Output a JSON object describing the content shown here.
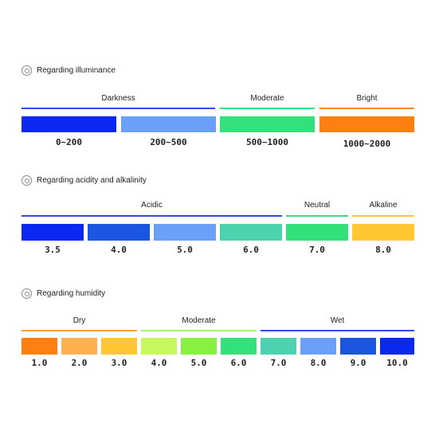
{
  "sections": [
    {
      "title": "Regarding illuminance",
      "groups": [
        {
          "label": "Darkness",
          "color": "#2f4fe0"
        },
        {
          "label": "Moderate",
          "color": "#3ddc84"
        },
        {
          "label": "Bright",
          "color": "#ff8c1a"
        }
      ],
      "swatches": [
        {
          "value": "0~200",
          "color": "#0a28f0"
        },
        {
          "value": "200~500",
          "color": "#6aa0f8"
        },
        {
          "value": "500~1000",
          "color": "#33e07a"
        },
        {
          "value": "1000~2000",
          "color": "#ff8010"
        }
      ]
    },
    {
      "title": "Regarding acidity and alkalinity",
      "groups": [
        {
          "label": "Acidic",
          "color": "#2f4fe0"
        },
        {
          "label": "Neutral",
          "color": "#3ddc84"
        },
        {
          "label": "Alkaline",
          "color": "#ffc832"
        }
      ],
      "swatches": [
        {
          "value": "3.5",
          "color": "#0a28f0"
        },
        {
          "value": "4.0",
          "color": "#1a56e0"
        },
        {
          "value": "5.0",
          "color": "#6aa0f8"
        },
        {
          "value": "6.0",
          "color": "#4dd2b0"
        },
        {
          "value": "7.0",
          "color": "#33e07a"
        },
        {
          "value": "8.0",
          "color": "#ffc832"
        }
      ]
    },
    {
      "title": "Regarding humidity",
      "groups": [
        {
          "label": "Dry",
          "color": "#ffa030"
        },
        {
          "label": "Moderate",
          "color": "#a8f070"
        },
        {
          "label": "Wet",
          "color": "#2f4fe0"
        }
      ],
      "swatches": [
        {
          "value": "1.0",
          "color": "#ff8010"
        },
        {
          "value": "2.0",
          "color": "#ffb050"
        },
        {
          "value": "3.0",
          "color": "#ffc832"
        },
        {
          "value": "4.0",
          "color": "#c8f860"
        },
        {
          "value": "5.0",
          "color": "#88f040"
        },
        {
          "value": "6.0",
          "color": "#33e07a"
        },
        {
          "value": "7.0",
          "color": "#4dd2b0"
        },
        {
          "value": "8.0",
          "color": "#6aa0f8"
        },
        {
          "value": "9.0",
          "color": "#1a56e0"
        },
        {
          "value": "10.0",
          "color": "#0a28f0"
        }
      ]
    }
  ]
}
